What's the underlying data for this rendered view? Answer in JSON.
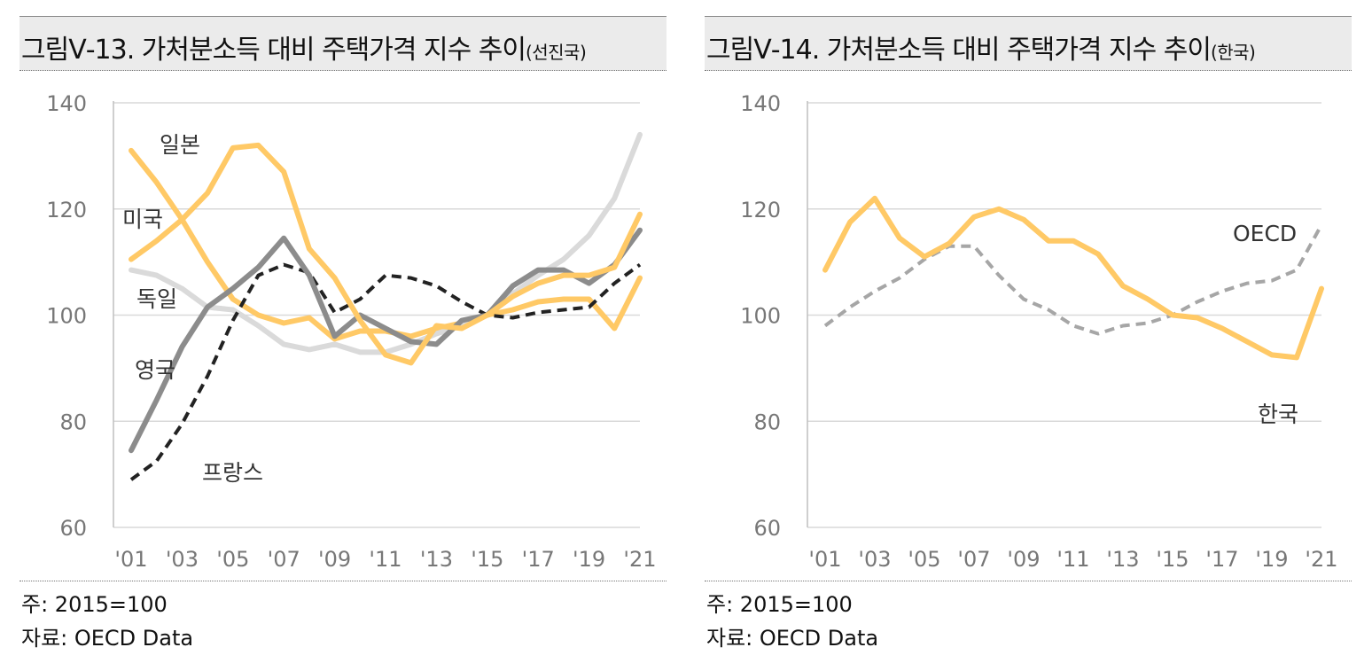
{
  "charts": [
    {
      "title": "그림Ⅴ-13. 가처분소득 대비 주택가격 지수 추이",
      "title_suffix": "(선진국)",
      "note": "주: 2015=100",
      "source": "자료: OECD Data"
    },
    {
      "title": "그림Ⅴ-14. 가처분소득 대비 주택가격 지수 추이",
      "title_suffix": "(한국)",
      "note": "주: 2015=100",
      "source": "자료: OECD Data"
    }
  ],
  "chart_data": [
    {
      "type": "line",
      "title": "그림Ⅴ-13. 가처분소득 대비 주택가격 지수 추이(선진국)",
      "xlabel": "",
      "ylabel": "",
      "x": [
        2001,
        2002,
        2003,
        2004,
        2005,
        2006,
        2007,
        2008,
        2009,
        2010,
        2011,
        2012,
        2013,
        2014,
        2015,
        2016,
        2017,
        2018,
        2019,
        2020,
        2021
      ],
      "x_tick_labels": [
        "'01",
        "'03",
        "'05",
        "'07",
        "'09",
        "'11",
        "'13",
        "'15",
        "'17",
        "'19",
        "'21"
      ],
      "y_ticks": [
        60,
        80,
        100,
        120,
        140
      ],
      "ylim": [
        60,
        140
      ],
      "grid": "horizontal",
      "series": [
        {
          "name": "일본",
          "color": "#ffc966",
          "style": "solid",
          "width": 6,
          "values": [
            131,
            125,
            118,
            110,
            103,
            100,
            98.5,
            99.5,
            95.5,
            97,
            97,
            96,
            97.5,
            98.5,
            100,
            101,
            102.5,
            103,
            103,
            97.5,
            107
          ]
        },
        {
          "name": "미국",
          "color": "#ffc966",
          "style": "solid",
          "width": 6,
          "values": [
            110.5,
            114,
            118,
            123,
            131.5,
            132,
            127,
            112.5,
            107,
            99,
            92.5,
            91,
            98,
            97.5,
            100,
            103.5,
            106,
            107.5,
            107.5,
            109,
            119
          ]
        },
        {
          "name": "독일",
          "color": "#dadada",
          "style": "solid",
          "width": 6,
          "values": [
            108.5,
            107.5,
            105,
            101.5,
            101,
            98,
            94.5,
            93.5,
            94.5,
            93,
            93,
            94.5,
            96.5,
            98,
            100,
            104,
            107.5,
            110.5,
            115,
            122,
            134
          ]
        },
        {
          "name": "영국",
          "color": "#8c8c8c",
          "style": "solid",
          "width": 6,
          "values": [
            74.5,
            84,
            94,
            101.5,
            105,
            109,
            114.5,
            107.5,
            96,
            100,
            97.5,
            95,
            94.5,
            99,
            100,
            105.5,
            108.5,
            108.5,
            106,
            109.5,
            116
          ]
        },
        {
          "name": "프랑스",
          "color": "#222222",
          "style": "dashed",
          "width": 4,
          "values": [
            69,
            72.5,
            79.5,
            88.5,
            99,
            107.5,
            109.5,
            108,
            100.5,
            103,
            107.5,
            107,
            105.5,
            102.5,
            100,
            99.5,
            100.5,
            101,
            101.5,
            106,
            109.5
          ]
        }
      ],
      "labels": [
        {
          "text": "일본",
          "series": "일본"
        },
        {
          "text": "미국",
          "series": "미국"
        },
        {
          "text": "독일",
          "series": "독일"
        },
        {
          "text": "영국",
          "series": "영국"
        },
        {
          "text": "프랑스",
          "series": "프랑스"
        }
      ]
    },
    {
      "type": "line",
      "title": "그림Ⅴ-14. 가처분소득 대비 주택가격 지수 추이(한국)",
      "xlabel": "",
      "ylabel": "",
      "x": [
        2001,
        2002,
        2003,
        2004,
        2005,
        2006,
        2007,
        2008,
        2009,
        2010,
        2011,
        2012,
        2013,
        2014,
        2015,
        2016,
        2017,
        2018,
        2019,
        2020,
        2021
      ],
      "x_tick_labels": [
        "'01",
        "'03",
        "'05",
        "'07",
        "'09",
        "'11",
        "'13",
        "'15",
        "'17",
        "'19",
        "'21"
      ],
      "y_ticks": [
        60,
        80,
        100,
        120,
        140
      ],
      "ylim": [
        60,
        140
      ],
      "grid": "horizontal",
      "series": [
        {
          "name": "한국",
          "color": "#ffc966",
          "style": "solid",
          "width": 6,
          "values": [
            108.5,
            117.5,
            122,
            114.5,
            111,
            113.5,
            118.5,
            120,
            118,
            114,
            114,
            111.5,
            105.5,
            103,
            100,
            99.5,
            97.5,
            95,
            92.5,
            92,
            105
          ]
        },
        {
          "name": "OECD",
          "color": "#a6a6a6",
          "style": "dashed",
          "width": 4,
          "values": [
            98,
            101.5,
            104.5,
            107,
            110.5,
            113,
            113,
            107.5,
            103,
            101,
            98,
            96.5,
            98,
            98.5,
            100,
            102.5,
            104.5,
            106,
            106.5,
            108.5,
            117
          ]
        }
      ],
      "labels": [
        {
          "text": "OECD",
          "series": "OECD"
        },
        {
          "text": "한국",
          "series": "한국"
        }
      ]
    }
  ]
}
